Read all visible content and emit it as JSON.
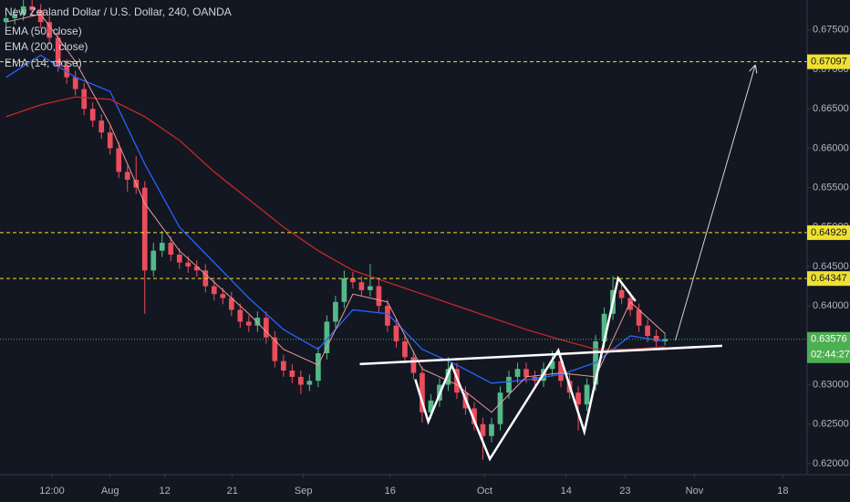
{
  "chart_data": {
    "type": "candlestick",
    "title": "New Zealand Dollar / U.S. Dollar, 240, OANDA",
    "up_color": "#53b987",
    "down_color": "#eb4d5c",
    "xlim": [
      -12.7,
      80.4
    ],
    "ylim": [
      0.6186,
      0.6788
    ],
    "grid": false,
    "xticks": [
      {
        "value": -6.7,
        "label": "12:00"
      },
      {
        "value": 0,
        "label": "Aug"
      },
      {
        "value": 6.3,
        "label": "12"
      },
      {
        "value": 14.1,
        "label": "21"
      },
      {
        "value": 22.3,
        "label": "Sep"
      },
      {
        "value": 32.3,
        "label": "16"
      },
      {
        "value": 43.2,
        "label": "Oct"
      },
      {
        "value": 52.6,
        "label": "14"
      },
      {
        "value": 59.4,
        "label": "23"
      },
      {
        "value": 67.4,
        "label": "Nov"
      },
      {
        "value": 77.6,
        "label": "18"
      }
    ],
    "yticks": [
      {
        "value": 0.62,
        "label": "0.62000"
      },
      {
        "value": 0.625,
        "label": "0.62500"
      },
      {
        "value": 0.63,
        "label": "0.63000"
      },
      {
        "value": 0.635,
        "label": "0.63500"
      },
      {
        "value": 0.64,
        "label": "0.64000"
      },
      {
        "value": 0.645,
        "label": "0.64500"
      },
      {
        "value": 0.65,
        "label": "0.65000"
      },
      {
        "value": 0.655,
        "label": "0.65500"
      },
      {
        "value": 0.66,
        "label": "0.66000"
      },
      {
        "value": 0.665,
        "label": "0.66500"
      },
      {
        "value": 0.67,
        "label": "0.67000"
      },
      {
        "value": 0.675,
        "label": "0.67500"
      }
    ],
    "x": [
      -12,
      -11,
      -10,
      -9,
      -8,
      -7,
      -6,
      -5,
      -4,
      -3,
      -2,
      -1,
      0,
      1,
      2,
      3,
      4,
      5,
      6,
      7,
      8,
      9,
      10,
      11,
      12,
      13,
      14,
      15,
      16,
      17,
      18,
      19,
      20,
      21,
      22,
      23,
      24,
      25,
      26,
      27,
      28,
      29,
      30,
      31,
      32,
      33,
      34,
      35,
      36,
      37,
      38,
      39,
      40,
      41,
      42,
      43,
      44,
      45,
      46,
      47,
      48,
      49,
      50,
      51,
      52,
      53,
      54,
      55,
      56,
      57,
      58,
      59,
      60,
      61,
      62,
      63,
      64
    ],
    "open": [
      0.676,
      0.6765,
      0.677,
      0.678,
      0.6775,
      0.676,
      0.674,
      0.6705,
      0.669,
      0.6675,
      0.665,
      0.6635,
      0.662,
      0.66,
      0.657,
      0.656,
      0.655,
      0.6445,
      0.647,
      0.648,
      0.6465,
      0.6455,
      0.645,
      0.6445,
      0.6425,
      0.6415,
      0.641,
      0.6395,
      0.638,
      0.6375,
      0.6385,
      0.636,
      0.633,
      0.6318,
      0.631,
      0.63,
      0.6305,
      0.634,
      0.638,
      0.6405,
      0.6435,
      0.643,
      0.642,
      0.6425,
      0.64,
      0.6375,
      0.6355,
      0.6335,
      0.6315,
      0.6265,
      0.628,
      0.63,
      0.632,
      0.629,
      0.627,
      0.625,
      0.6235,
      0.625,
      0.629,
      0.631,
      0.632,
      0.631,
      0.6305,
      0.632,
      0.633,
      0.6305,
      0.629,
      0.6275,
      0.63,
      0.6355,
      0.639,
      0.642,
      0.641,
      0.6395,
      0.6375,
      0.6362,
      0.6355
    ],
    "high": [
      0.6773,
      0.6778,
      0.6788,
      0.6788,
      0.6783,
      0.6768,
      0.6748,
      0.6713,
      0.6698,
      0.6683,
      0.6658,
      0.6643,
      0.6628,
      0.6608,
      0.6578,
      0.659,
      0.6558,
      0.648,
      0.6495,
      0.6488,
      0.6473,
      0.6463,
      0.6458,
      0.6453,
      0.6433,
      0.6423,
      0.6418,
      0.6403,
      0.6388,
      0.6393,
      0.6393,
      0.6368,
      0.6338,
      0.6326,
      0.6318,
      0.6313,
      0.6348,
      0.6388,
      0.6413,
      0.6445,
      0.6443,
      0.6438,
      0.6453,
      0.6433,
      0.6408,
      0.6383,
      0.6363,
      0.6343,
      0.6323,
      0.6288,
      0.6308,
      0.6335,
      0.6328,
      0.6298,
      0.6278,
      0.6258,
      0.6258,
      0.6298,
      0.6318,
      0.6328,
      0.6328,
      0.6318,
      0.6328,
      0.6343,
      0.6338,
      0.6313,
      0.6298,
      0.6308,
      0.6363,
      0.6398,
      0.6438,
      0.6428,
      0.6418,
      0.6403,
      0.6383,
      0.637,
      0.6366
    ],
    "low": [
      0.6752,
      0.6757,
      0.6762,
      0.6767,
      0.6752,
      0.6732,
      0.6697,
      0.6682,
      0.6667,
      0.6642,
      0.6627,
      0.6612,
      0.6592,
      0.6562,
      0.6545,
      0.6542,
      0.639,
      0.6437,
      0.6462,
      0.6457,
      0.6447,
      0.6442,
      0.6437,
      0.6417,
      0.6407,
      0.6402,
      0.6387,
      0.6372,
      0.6367,
      0.6367,
      0.6352,
      0.6322,
      0.631,
      0.6302,
      0.6288,
      0.6292,
      0.6297,
      0.6332,
      0.6372,
      0.6397,
      0.6422,
      0.6412,
      0.6412,
      0.6392,
      0.6367,
      0.6347,
      0.6327,
      0.6307,
      0.6252,
      0.6257,
      0.6272,
      0.6292,
      0.6282,
      0.6262,
      0.6242,
      0.6205,
      0.6227,
      0.6242,
      0.6282,
      0.6302,
      0.6302,
      0.6297,
      0.6297,
      0.6312,
      0.6297,
      0.6282,
      0.6242,
      0.6267,
      0.6292,
      0.6347,
      0.6382,
      0.6402,
      0.6387,
      0.6367,
      0.6354,
      0.6347,
      0.635
    ],
    "close": [
      0.6765,
      0.677,
      0.678,
      0.6775,
      0.676,
      0.674,
      0.6705,
      0.669,
      0.6675,
      0.665,
      0.6635,
      0.662,
      0.66,
      0.657,
      0.656,
      0.655,
      0.6445,
      0.647,
      0.648,
      0.6465,
      0.6455,
      0.645,
      0.6445,
      0.6425,
      0.6415,
      0.641,
      0.6395,
      0.638,
      0.6375,
      0.6385,
      0.636,
      0.633,
      0.6318,
      0.631,
      0.63,
      0.6305,
      0.634,
      0.638,
      0.6405,
      0.6435,
      0.643,
      0.642,
      0.6425,
      0.64,
      0.6375,
      0.6355,
      0.6335,
      0.6315,
      0.6265,
      0.628,
      0.63,
      0.632,
      0.629,
      0.627,
      0.625,
      0.6235,
      0.625,
      0.629,
      0.631,
      0.632,
      0.631,
      0.6305,
      0.632,
      0.633,
      0.6305,
      0.629,
      0.6275,
      0.63,
      0.6355,
      0.639,
      0.642,
      0.641,
      0.6395,
      0.6375,
      0.6362,
      0.6355,
      0.6358
    ],
    "series": [
      {
        "name": "EMA (50, close)",
        "color": "#2962ff",
        "x": [
          -12,
          -8,
          -4,
          0,
          4,
          8,
          12,
          16,
          20,
          24,
          28,
          32,
          36,
          40,
          44,
          48,
          52,
          56,
          60,
          64
        ],
        "values": [
          0.669,
          0.6718,
          0.669,
          0.6672,
          0.658,
          0.65,
          0.6455,
          0.641,
          0.637,
          0.6345,
          0.6395,
          0.639,
          0.6345,
          0.6325,
          0.6302,
          0.6306,
          0.6313,
          0.6328,
          0.6362,
          0.6355
        ]
      },
      {
        "name": "EMA (200, close)",
        "color": "#c62828",
        "x": [
          -12,
          -8,
          -4,
          0,
          4,
          8,
          12,
          16,
          20,
          24,
          28,
          32,
          36,
          40,
          44,
          48,
          52,
          56,
          60,
          64
        ],
        "values": [
          0.664,
          0.6655,
          0.6665,
          0.6662,
          0.664,
          0.661,
          0.657,
          0.6535,
          0.65,
          0.647,
          0.6445,
          0.643,
          0.6415,
          0.64,
          0.6385,
          0.637,
          0.6357,
          0.6345,
          0.6345,
          0.6348
        ]
      },
      {
        "name": "EMA (14, close)",
        "color": "#e89a9a",
        "x": [
          -12,
          -8,
          -4,
          0,
          4,
          8,
          12,
          16,
          20,
          24,
          28,
          32,
          36,
          40,
          44,
          48,
          52,
          56,
          60,
          64
        ],
        "values": [
          0.676,
          0.677,
          0.671,
          0.663,
          0.653,
          0.647,
          0.643,
          0.639,
          0.6345,
          0.6325,
          0.6415,
          0.6405,
          0.632,
          0.63,
          0.6265,
          0.631,
          0.6315,
          0.631,
          0.6405,
          0.6365
        ]
      }
    ],
    "levels": [
      {
        "value": 0.67097,
        "label": "0.67097",
        "color": "#f0e130"
      },
      {
        "value": 0.64929,
        "label": "0.64929",
        "color": "#f0e130"
      },
      {
        "value": 0.64347,
        "label": "0.64347",
        "color": "#f0e130"
      }
    ],
    "last_price": {
      "value": 0.63576,
      "label": "0.63576",
      "countdown": "02:44:27",
      "color": "#4caf50"
    },
    "drawings": [
      {
        "kind": "line",
        "color": "#ffffff",
        "x": [
          28.8,
          70.6
        ],
        "y": [
          0.63262,
          0.63494
        ]
      },
      {
        "kind": "line",
        "color": "#ffffff",
        "x": [
          35.2,
          36.7,
          39.4,
          43.8,
          51.7,
          54.7,
          58.6,
          60.6
        ],
        "y": [
          0.63069,
          0.62532,
          0.6325,
          0.62058,
          0.63436,
          0.62405,
          0.6435,
          0.64061
        ]
      },
      {
        "kind": "arrow",
        "color": "#d1d4dc",
        "x": [
          65.2,
          74.4
        ],
        "y": [
          0.63563,
          0.67048
        ]
      }
    ]
  }
}
